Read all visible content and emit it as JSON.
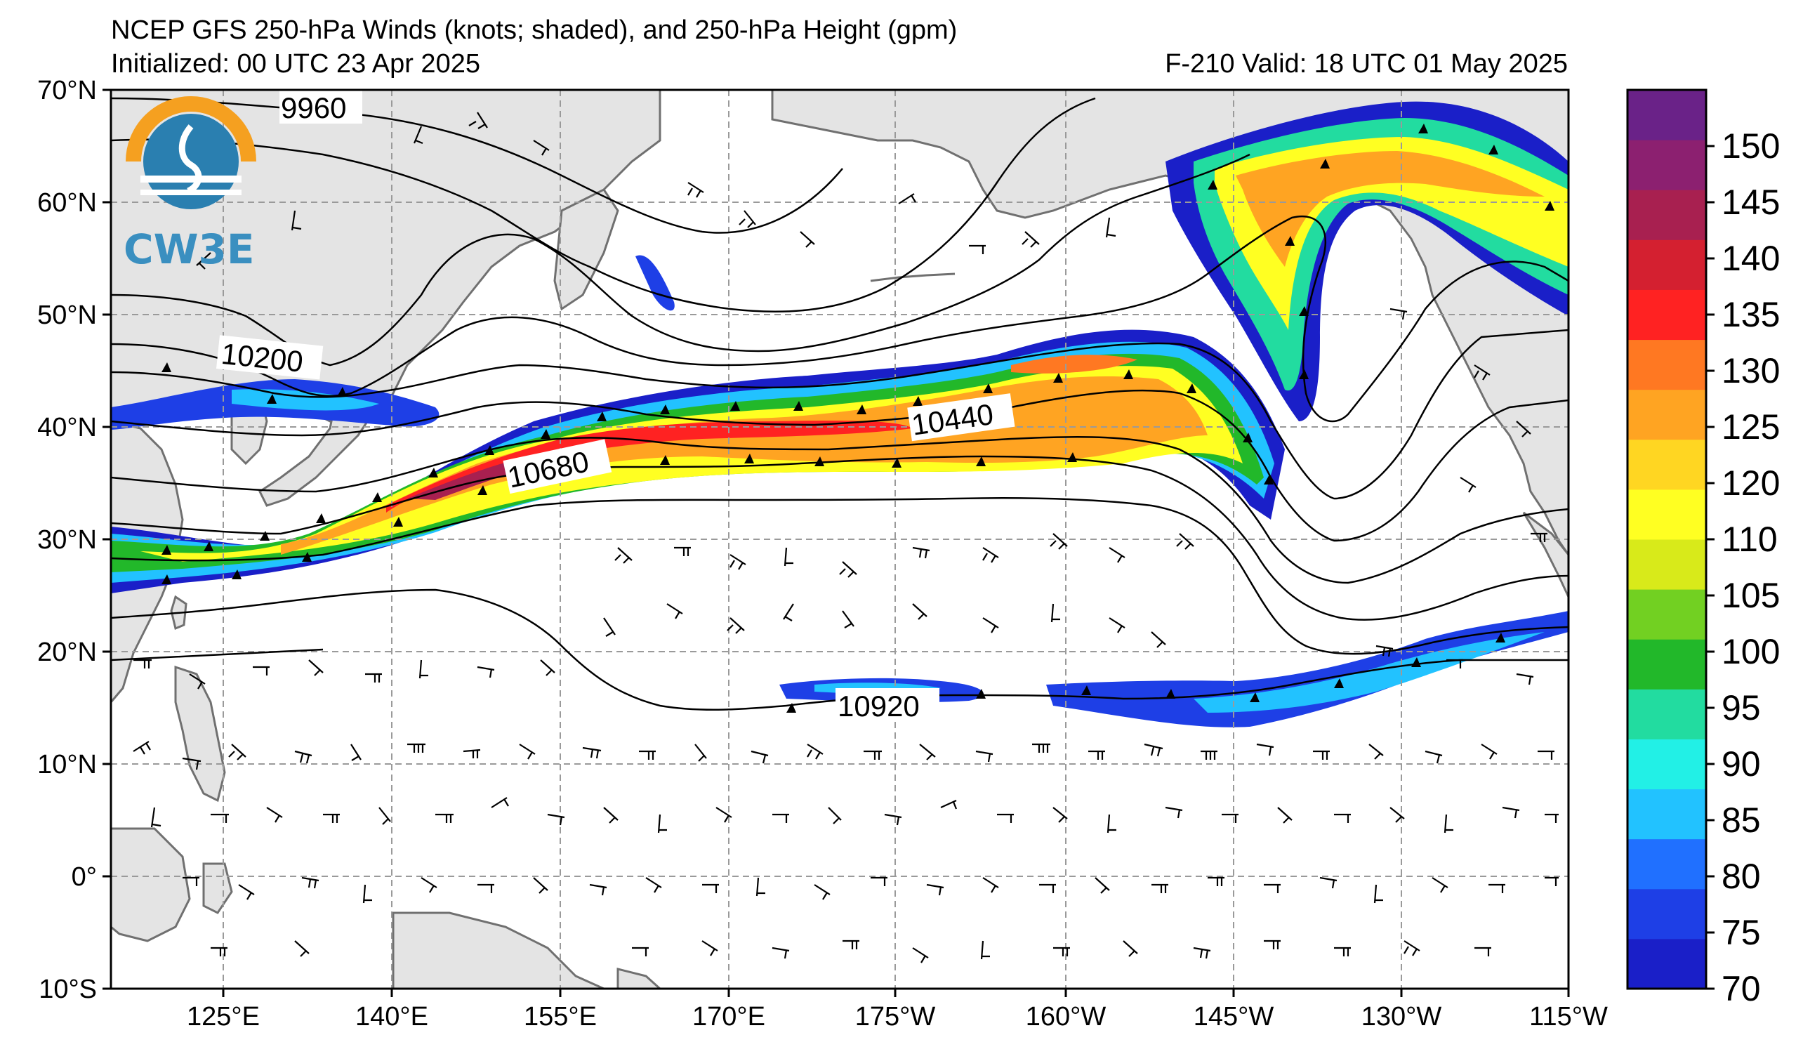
{
  "title": {
    "line1": "NCEP GFS 250-hPa Winds (knots; shaded), and 250-hPa Height (gpm)",
    "initialized": "Initialized: 00 UTC 23 Apr 2025",
    "valid": "F-210  Valid: 18 UTC 01 May 2025"
  },
  "logo": {
    "text": "CW3E"
  },
  "axes": {
    "lat_labels": [
      "70°N",
      "60°N",
      "50°N",
      "40°N",
      "30°N",
      "20°N",
      "10°N",
      "0°",
      "10°S"
    ],
    "lon_labels": [
      "125°E",
      "140°E",
      "155°E",
      "170°E",
      "175°W",
      "160°W",
      "145°W",
      "130°W",
      "115°W"
    ]
  },
  "contour_labels": [
    "9960",
    "10200",
    "10440",
    "10680",
    "10920"
  ],
  "colorbar": {
    "labels": [
      "70",
      "75",
      "80",
      "85",
      "90",
      "95",
      "100",
      "105",
      "110",
      "120",
      "125",
      "130",
      "135",
      "140",
      "145",
      "150"
    ],
    "colors": [
      "#1a1fc8",
      "#1e3fe6",
      "#2070ff",
      "#22c2ff",
      "#22f0e6",
      "#22dca0",
      "#22b82a",
      "#72d022",
      "#d8ea1a",
      "#ffff22",
      "#ffd622",
      "#ffa422",
      "#ff7822",
      "#ff2222",
      "#d42030",
      "#a82050",
      "#8c2070",
      "#6a2288"
    ]
  },
  "colors": {
    "land": "#e4e4e4",
    "coast": "#707070",
    "grid": "#9a9a9a"
  }
}
